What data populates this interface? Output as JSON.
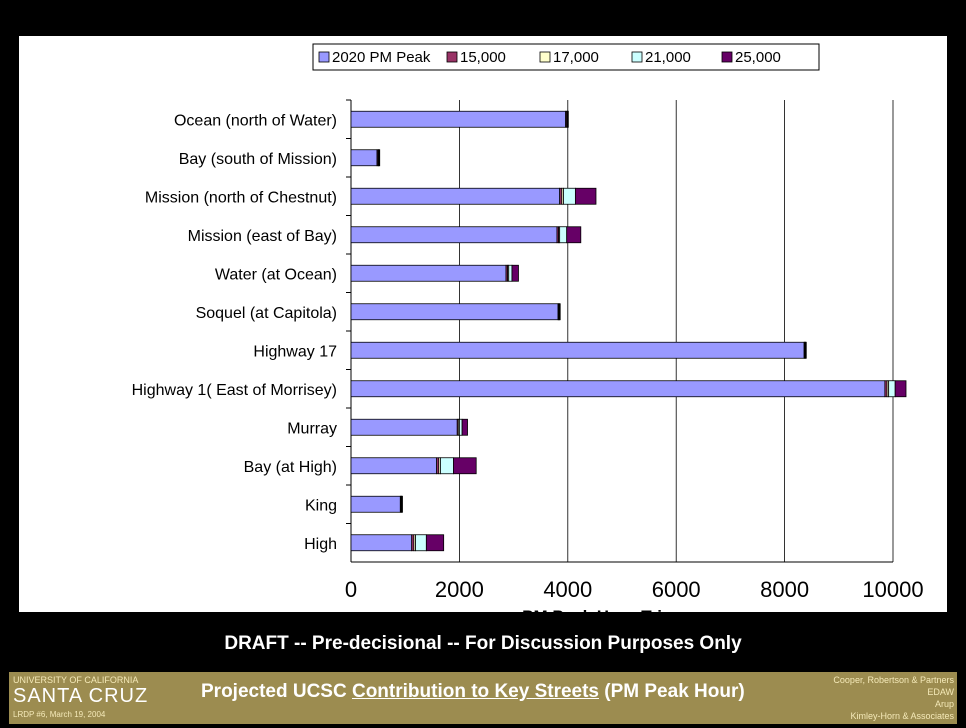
{
  "chart_data": {
    "type": "bar",
    "orientation": "horizontal",
    "stacked": true,
    "categories": [
      "Ocean (north of Water)",
      "Bay (south of Mission)",
      "Mission (north of Chestnut)",
      "Mission (east of Bay)",
      "Water (at Ocean)",
      "Soquel (at Capitola)",
      "Highway 17",
      "Highway 1( East of Morrisey)",
      "Murray",
      "Bay (at High)",
      "King",
      "High"
    ],
    "series": [
      {
        "name": "2020 PM Peak",
        "color": "#9999ff",
        "values": [
          3960,
          480,
          3850,
          3800,
          2860,
          3820,
          8360,
          9850,
          1960,
          1580,
          910,
          1120
        ]
      },
      {
        "name": "15,000",
        "color": "#993366",
        "values": [
          20,
          20,
          40,
          30,
          30,
          10,
          10,
          40,
          20,
          40,
          10,
          40
        ]
      },
      {
        "name": "17,000",
        "color": "#ffffcc",
        "values": [
          10,
          10,
          30,
          20,
          20,
          10,
          10,
          30,
          20,
          30,
          10,
          30
        ]
      },
      {
        "name": "21,000",
        "color": "#ccffff",
        "values": [
          10,
          10,
          220,
          130,
          60,
          10,
          10,
          120,
          50,
          240,
          10,
          200
        ]
      },
      {
        "name": "25,000",
        "color": "#660066",
        "values": [
          10,
          10,
          380,
          260,
          120,
          10,
          10,
          200,
          100,
          420,
          10,
          320
        ]
      }
    ],
    "xlabel": "PM Peak Hour Trips",
    "xlim": [
      0,
      10000
    ],
    "xticks": [
      0,
      2000,
      4000,
      6000,
      8000,
      10000
    ],
    "grid": "vertical",
    "legend": "top"
  },
  "draft_note": "DRAFT -- Pre-decisional -- For Discussion Purposes Only",
  "footer": {
    "university": "UNIVERSITY OF CALIFORNIA",
    "campus": "SANTA  CRUZ",
    "meeting": "LRDP #6, March 19, 2004",
    "title_prefix": "Projected UCSC ",
    "title_underlined": "Contribution to Key Streets",
    "title_suffix": " (PM Peak Hour)",
    "credits": [
      "Cooper, Robertson & Partners",
      "EDAW",
      "Arup",
      "Kimley-Horn & Associates"
    ]
  },
  "colors": {
    "background": "#000000",
    "footer": "#9c8c50"
  }
}
